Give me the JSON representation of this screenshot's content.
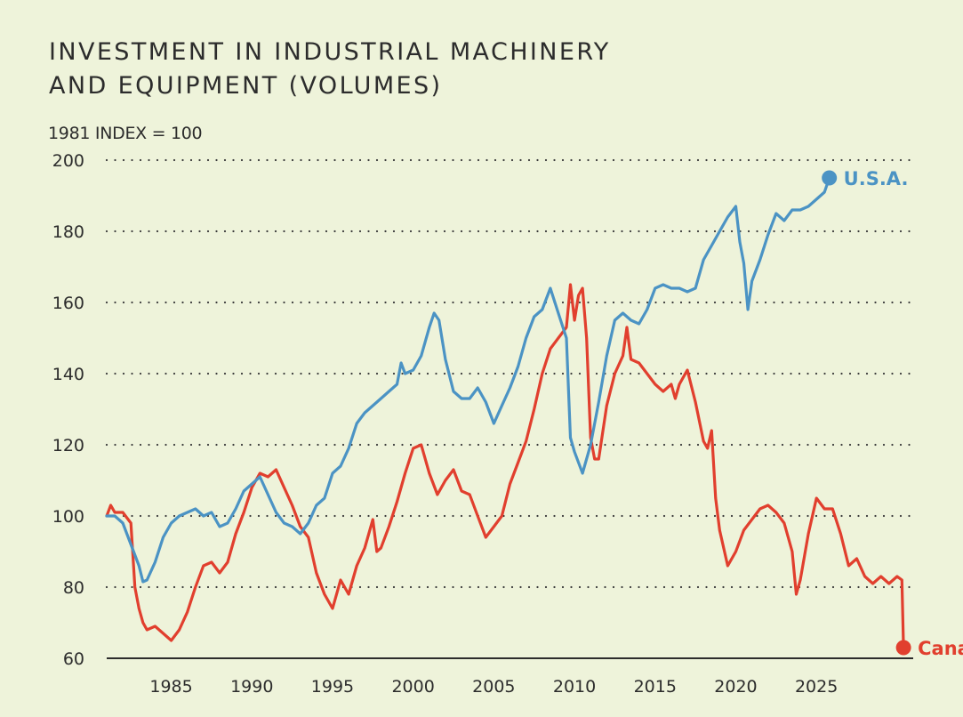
{
  "title_line1": "INVESTMENT IN INDUSTRIAL MACHINERY",
  "title_line2": "AND EQUIPMENT (VOLUMES)",
  "index_label": "1981 INDEX = 100",
  "chart_data": {
    "type": "line",
    "title": "INVESTMENT IN INDUSTRIAL MACHINERY AND EQUIPMENT (VOLUMES)",
    "ylabel": "1981 INDEX = 100",
    "xlabel": "",
    "ylim": [
      60,
      200
    ],
    "xlim": [
      1981,
      2031
    ],
    "yticks": [
      60,
      80,
      100,
      120,
      140,
      160,
      180,
      200
    ],
    "xticks": [
      1985,
      1990,
      1995,
      2000,
      2005,
      2010,
      2015,
      2020,
      2025
    ],
    "grid": "horizontal dotted",
    "colors": {
      "usa": "#4b93c4",
      "canada": "#e13f2e",
      "background": "#eef3da"
    },
    "series": [
      {
        "name": "U.S.A.",
        "key": "usa",
        "end_label": "U.S.A.",
        "points": [
          [
            1981.0,
            100
          ],
          [
            1981.5,
            100
          ],
          [
            1982.0,
            98
          ],
          [
            1982.5,
            92
          ],
          [
            1983.0,
            86
          ],
          [
            1983.25,
            81.5
          ],
          [
            1983.5,
            82
          ],
          [
            1984.0,
            87
          ],
          [
            1984.5,
            94
          ],
          [
            1985.0,
            98
          ],
          [
            1985.5,
            100
          ],
          [
            1986.0,
            101
          ],
          [
            1986.5,
            102
          ],
          [
            1987.0,
            100
          ],
          [
            1987.5,
            101
          ],
          [
            1988.0,
            97
          ],
          [
            1988.5,
            98
          ],
          [
            1989.0,
            102
          ],
          [
            1989.5,
            107
          ],
          [
            1990.0,
            109
          ],
          [
            1990.5,
            111
          ],
          [
            1991.0,
            106
          ],
          [
            1991.5,
            101
          ],
          [
            1992.0,
            98
          ],
          [
            1992.5,
            97
          ],
          [
            1993.0,
            95
          ],
          [
            1993.5,
            98
          ],
          [
            1994.0,
            103
          ],
          [
            1994.5,
            105
          ],
          [
            1995.0,
            112
          ],
          [
            1995.5,
            114
          ],
          [
            1996.0,
            119
          ],
          [
            1996.5,
            126
          ],
          [
            1997.0,
            129
          ],
          [
            1997.5,
            131
          ],
          [
            1998.0,
            133
          ],
          [
            1998.5,
            135
          ],
          [
            1999.0,
            137
          ],
          [
            1999.25,
            143
          ],
          [
            1999.5,
            140
          ],
          [
            2000.0,
            141
          ],
          [
            2000.5,
            145
          ],
          [
            2001.0,
            153
          ],
          [
            2001.3,
            157
          ],
          [
            2001.6,
            155
          ],
          [
            2002.0,
            144
          ],
          [
            2002.5,
            135
          ],
          [
            2003.0,
            133
          ],
          [
            2003.5,
            133
          ],
          [
            2004.0,
            136
          ],
          [
            2004.5,
            132
          ],
          [
            2005.0,
            126
          ],
          [
            2005.5,
            131
          ],
          [
            2006.0,
            136
          ],
          [
            2006.5,
            142
          ],
          [
            2007.0,
            150
          ],
          [
            2007.5,
            156
          ],
          [
            2008.0,
            158
          ],
          [
            2008.5,
            164
          ],
          [
            2009.0,
            157
          ],
          [
            2009.5,
            150
          ],
          [
            2009.75,
            122
          ],
          [
            2010.0,
            118
          ],
          [
            2010.25,
            115
          ],
          [
            2010.5,
            112
          ],
          [
            2011.0,
            120
          ],
          [
            2011.5,
            132
          ],
          [
            2012.0,
            145
          ],
          [
            2012.5,
            155
          ],
          [
            2013.0,
            157
          ],
          [
            2013.5,
            155
          ],
          [
            2014.0,
            154
          ],
          [
            2014.5,
            158
          ],
          [
            2015.0,
            164
          ],
          [
            2015.5,
            165
          ],
          [
            2016.0,
            164
          ],
          [
            2016.5,
            164
          ],
          [
            2017.0,
            163
          ],
          [
            2017.5,
            164
          ],
          [
            2018.0,
            172
          ],
          [
            2018.5,
            176
          ],
          [
            2019.0,
            180
          ],
          [
            2019.5,
            184
          ],
          [
            2020.0,
            187
          ],
          [
            2020.25,
            177
          ],
          [
            2020.5,
            171
          ],
          [
            2020.75,
            158
          ],
          [
            2021.0,
            166
          ],
          [
            2021.5,
            172
          ],
          [
            2022.0,
            179
          ],
          [
            2022.5,
            185
          ],
          [
            2023.0,
            183
          ],
          [
            2023.5,
            186
          ],
          [
            2024.0,
            186
          ],
          [
            2024.5,
            187
          ],
          [
            2025.0,
            189
          ],
          [
            2025.5,
            191
          ],
          [
            2025.8,
            195
          ]
        ]
      },
      {
        "name": "Canada",
        "key": "canada",
        "end_label": "Canada",
        "points": [
          [
            1981.0,
            100
          ],
          [
            1981.25,
            103
          ],
          [
            1981.5,
            101
          ],
          [
            1982.0,
            101
          ],
          [
            1982.5,
            98
          ],
          [
            1982.75,
            80
          ],
          [
            1983.0,
            74
          ],
          [
            1983.25,
            70
          ],
          [
            1983.5,
            68
          ],
          [
            1984.0,
            69
          ],
          [
            1984.5,
            67
          ],
          [
            1985.0,
            65
          ],
          [
            1985.5,
            68
          ],
          [
            1986.0,
            73
          ],
          [
            1986.5,
            80
          ],
          [
            1987.0,
            86
          ],
          [
            1987.5,
            87
          ],
          [
            1988.0,
            84
          ],
          [
            1988.5,
            87
          ],
          [
            1989.0,
            95
          ],
          [
            1989.5,
            101
          ],
          [
            1990.0,
            108
          ],
          [
            1990.5,
            112
          ],
          [
            1991.0,
            111
          ],
          [
            1991.5,
            113
          ],
          [
            1992.0,
            108
          ],
          [
            1992.5,
            103
          ],
          [
            1993.0,
            97
          ],
          [
            1993.5,
            94
          ],
          [
            1994.0,
            84
          ],
          [
            1994.5,
            78
          ],
          [
            1995.0,
            74
          ],
          [
            1995.5,
            82
          ],
          [
            1996.0,
            78
          ],
          [
            1996.5,
            86
          ],
          [
            1997.0,
            91
          ],
          [
            1997.5,
            99
          ],
          [
            1997.75,
            90
          ],
          [
            1998.0,
            91
          ],
          [
            1998.5,
            97
          ],
          [
            1999.0,
            104
          ],
          [
            1999.5,
            112
          ],
          [
            2000.0,
            119
          ],
          [
            2000.5,
            120
          ],
          [
            2001.0,
            112
          ],
          [
            2001.5,
            106
          ],
          [
            2002.0,
            110
          ],
          [
            2002.5,
            113
          ],
          [
            2003.0,
            107
          ],
          [
            2003.5,
            106
          ],
          [
            2004.0,
            100
          ],
          [
            2004.5,
            94
          ],
          [
            2005.0,
            97
          ],
          [
            2005.5,
            100
          ],
          [
            2006.0,
            109
          ],
          [
            2006.5,
            115
          ],
          [
            2007.0,
            121
          ],
          [
            2007.5,
            130
          ],
          [
            2008.0,
            140
          ],
          [
            2008.5,
            147
          ],
          [
            2009.0,
            150
          ],
          [
            2009.5,
            153
          ],
          [
            2009.75,
            165
          ],
          [
            2010.0,
            155
          ],
          [
            2010.25,
            162
          ],
          [
            2010.5,
            164
          ],
          [
            2010.75,
            150
          ],
          [
            2011.0,
            122
          ],
          [
            2011.25,
            116
          ],
          [
            2011.5,
            116
          ],
          [
            2012.0,
            131
          ],
          [
            2012.5,
            140
          ],
          [
            2013.0,
            145
          ],
          [
            2013.25,
            153
          ],
          [
            2013.5,
            144
          ],
          [
            2014.0,
            143
          ],
          [
            2014.5,
            140
          ],
          [
            2015.0,
            137
          ],
          [
            2015.5,
            135
          ],
          [
            2016.0,
            137
          ],
          [
            2016.25,
            133
          ],
          [
            2016.5,
            137
          ],
          [
            2017.0,
            141
          ],
          [
            2017.5,
            132
          ],
          [
            2018.0,
            121
          ],
          [
            2018.25,
            119
          ],
          [
            2018.5,
            124
          ],
          [
            2018.75,
            105
          ],
          [
            2019.0,
            96
          ],
          [
            2019.5,
            86
          ],
          [
            2020.0,
            90
          ],
          [
            2020.5,
            96
          ],
          [
            2021.0,
            99
          ],
          [
            2021.5,
            102
          ],
          [
            2022.0,
            103
          ],
          [
            2022.5,
            101
          ],
          [
            2023.0,
            98
          ],
          [
            2023.5,
            90
          ],
          [
            2023.75,
            78
          ],
          [
            2024.0,
            82
          ],
          [
            2024.5,
            95
          ],
          [
            2025.0,
            105
          ],
          [
            2025.5,
            102
          ],
          [
            2026.0,
            102
          ],
          [
            2026.5,
            95
          ],
          [
            2027.0,
            86
          ],
          [
            2027.5,
            88
          ],
          [
            2028.0,
            83
          ],
          [
            2028.5,
            81
          ],
          [
            2029.0,
            83
          ],
          [
            2029.5,
            81
          ],
          [
            2030.0,
            83
          ],
          [
            2030.3,
            82
          ],
          [
            2030.4,
            63
          ]
        ]
      }
    ]
  }
}
